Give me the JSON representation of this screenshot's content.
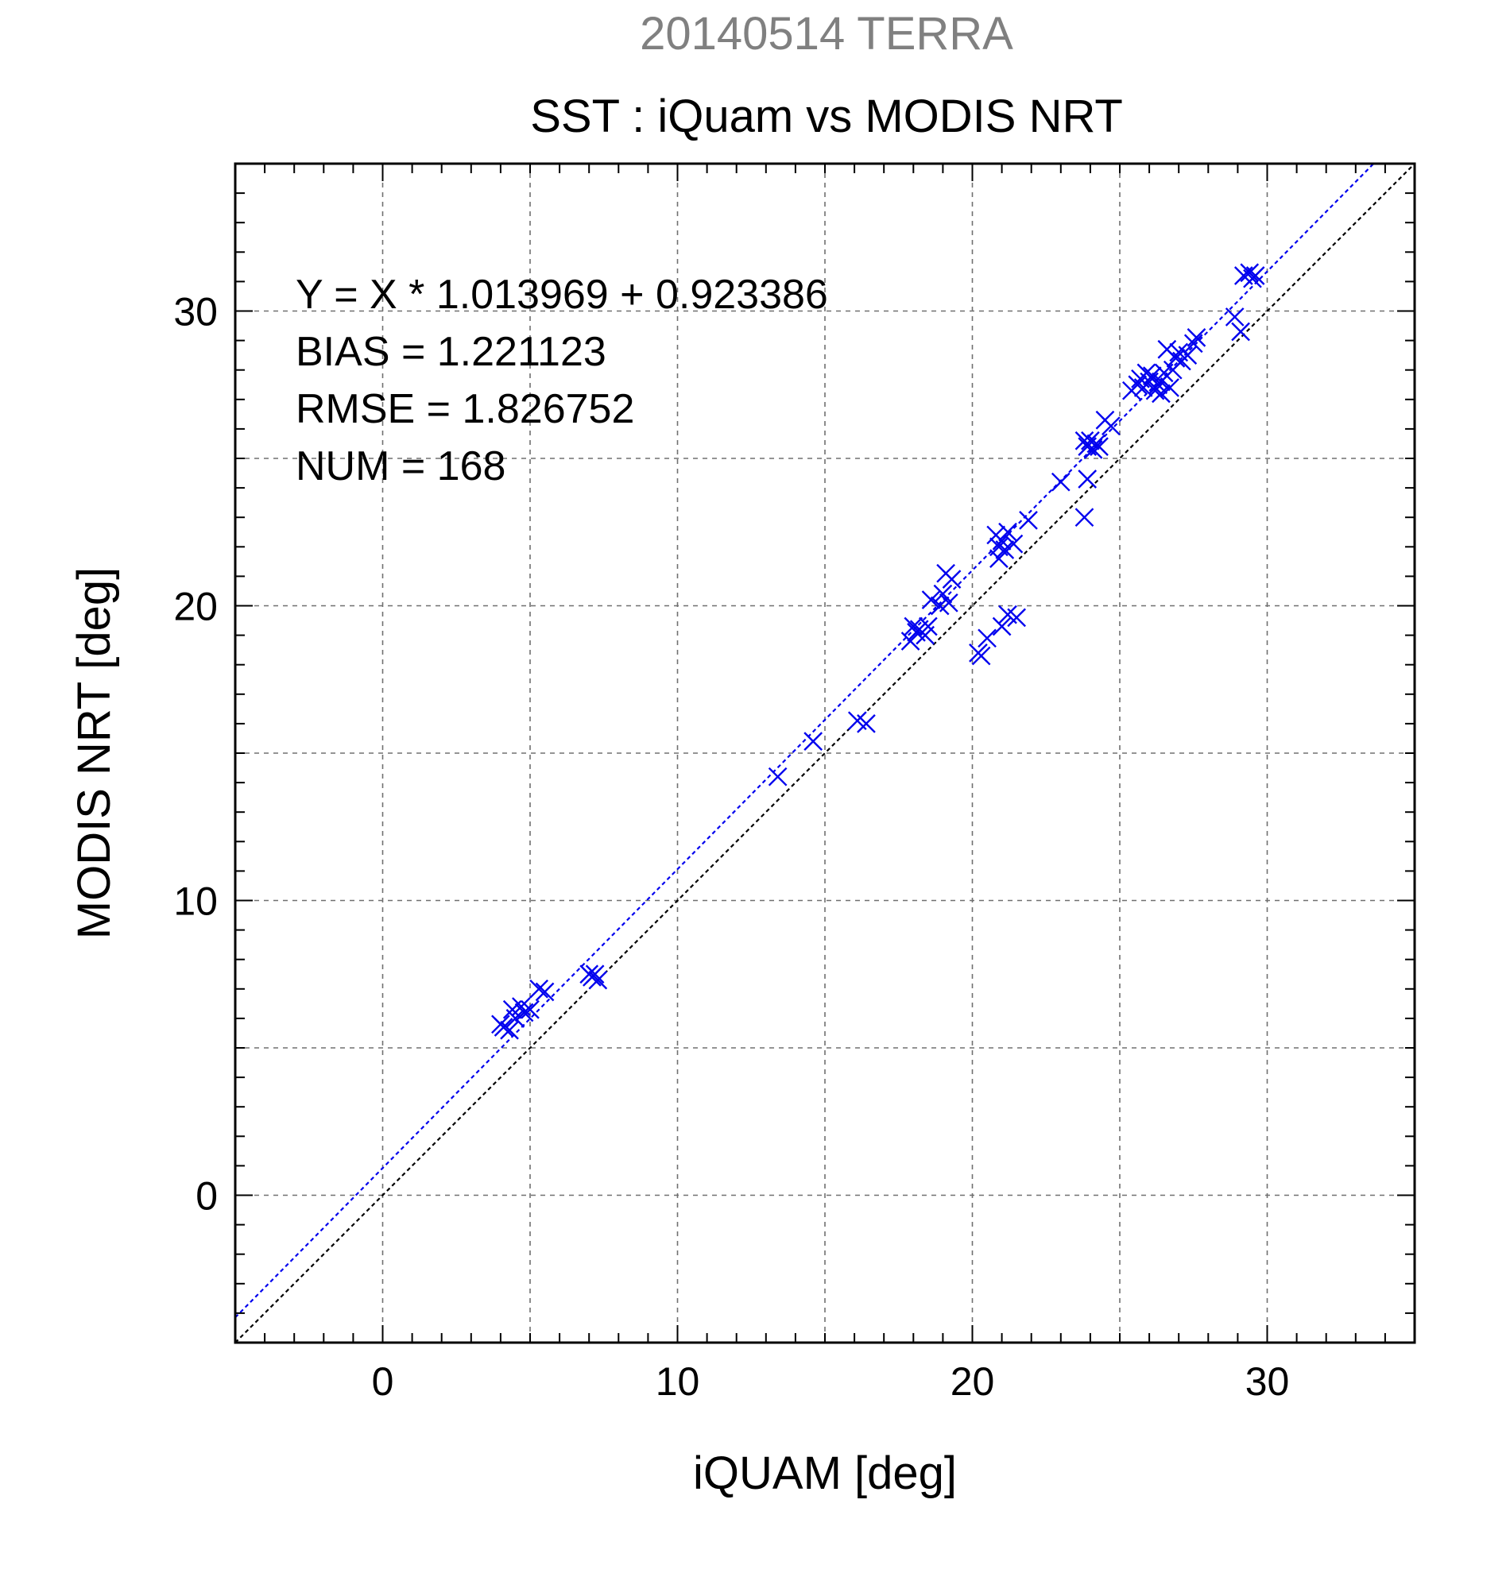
{
  "chart_data": {
    "type": "scatter",
    "title": "20140514 TERRA",
    "subtitle": "SST : iQuam vs MODIS NRT",
    "xlabel": "iQUAM [deg]",
    "ylabel": "MODIS NRT [deg]",
    "xlim": [
      -5,
      35
    ],
    "ylim": [
      -5,
      35
    ],
    "xticks": [
      0,
      10,
      20,
      30
    ],
    "yticks": [
      0,
      10,
      20,
      30
    ],
    "grid": true,
    "colors": {
      "points": "#0000ee",
      "fit_line": "#0000ee",
      "identity_line": "#000000",
      "title": "#808080"
    },
    "stats": [
      "Y = X * 1.013969 + 0.923386",
      "BIAS = 1.221123",
      "RMSE = 1.826752",
      "NUM = 168"
    ],
    "fit": {
      "slope": 1.013969,
      "intercept": 0.923386
    },
    "identity": {
      "slope": 1,
      "intercept": 0
    },
    "points": [
      [
        4.0,
        5.8
      ],
      [
        4.1,
        5.7
      ],
      [
        4.3,
        5.6
      ],
      [
        4.4,
        6.3
      ],
      [
        4.5,
        6.0
      ],
      [
        4.7,
        6.4
      ],
      [
        4.8,
        6.2
      ],
      [
        5.0,
        6.3
      ],
      [
        5.3,
        7.0
      ],
      [
        5.5,
        6.9
      ],
      [
        7.0,
        7.5
      ],
      [
        7.1,
        7.4
      ],
      [
        7.2,
        7.5
      ],
      [
        7.3,
        7.3
      ],
      [
        13.4,
        14.2
      ],
      [
        14.6,
        15.4
      ],
      [
        16.1,
        16.1
      ],
      [
        16.4,
        16.0
      ],
      [
        17.9,
        18.8
      ],
      [
        18.0,
        19.3
      ],
      [
        18.1,
        19.1
      ],
      [
        18.2,
        19.2
      ],
      [
        18.4,
        19.0
      ],
      [
        18.5,
        19.3
      ],
      [
        18.6,
        20.2
      ],
      [
        18.9,
        20.0
      ],
      [
        19.0,
        20.4
      ],
      [
        19.2,
        20.1
      ],
      [
        19.1,
        21.1
      ],
      [
        19.3,
        20.9
      ],
      [
        20.2,
        18.4
      ],
      [
        20.3,
        18.3
      ],
      [
        20.5,
        18.9
      ],
      [
        20.8,
        22.4
      ],
      [
        20.9,
        22.0
      ],
      [
        20.9,
        21.6
      ],
      [
        21.0,
        22.2
      ],
      [
        21.1,
        21.9
      ],
      [
        21.0,
        19.3
      ],
      [
        21.2,
        22.5
      ],
      [
        21.2,
        19.7
      ],
      [
        21.4,
        22.1
      ],
      [
        21.5,
        19.6
      ],
      [
        21.9,
        22.9
      ],
      [
        23.0,
        24.2
      ],
      [
        23.8,
        23.0
      ],
      [
        23.9,
        24.3
      ],
      [
        23.8,
        25.6
      ],
      [
        23.9,
        25.4
      ],
      [
        24.0,
        25.6
      ],
      [
        24.1,
        25.3
      ],
      [
        24.2,
        25.5
      ],
      [
        24.3,
        25.4
      ],
      [
        24.5,
        26.3
      ],
      [
        24.7,
        26.1
      ],
      [
        25.4,
        27.3
      ],
      [
        25.6,
        27.5
      ],
      [
        25.7,
        27.7
      ],
      [
        25.8,
        27.4
      ],
      [
        25.9,
        27.9
      ],
      [
        26.0,
        27.6
      ],
      [
        26.1,
        27.8
      ],
      [
        26.2,
        27.3
      ],
      [
        26.3,
        27.5
      ],
      [
        26.4,
        27.6
      ],
      [
        26.4,
        27.2
      ],
      [
        26.5,
        27.9
      ],
      [
        26.6,
        28.7
      ],
      [
        26.7,
        27.4
      ],
      [
        26.8,
        28.0
      ],
      [
        26.9,
        28.4
      ],
      [
        27.0,
        28.6
      ],
      [
        27.1,
        28.3
      ],
      [
        27.3,
        28.5
      ],
      [
        27.5,
        28.9
      ],
      [
        27.6,
        29.1
      ],
      [
        28.9,
        29.8
      ],
      [
        29.1,
        29.3
      ],
      [
        29.2,
        31.2
      ],
      [
        29.4,
        31.3
      ],
      [
        29.5,
        31.1
      ],
      [
        29.6,
        31.2
      ]
    ]
  }
}
